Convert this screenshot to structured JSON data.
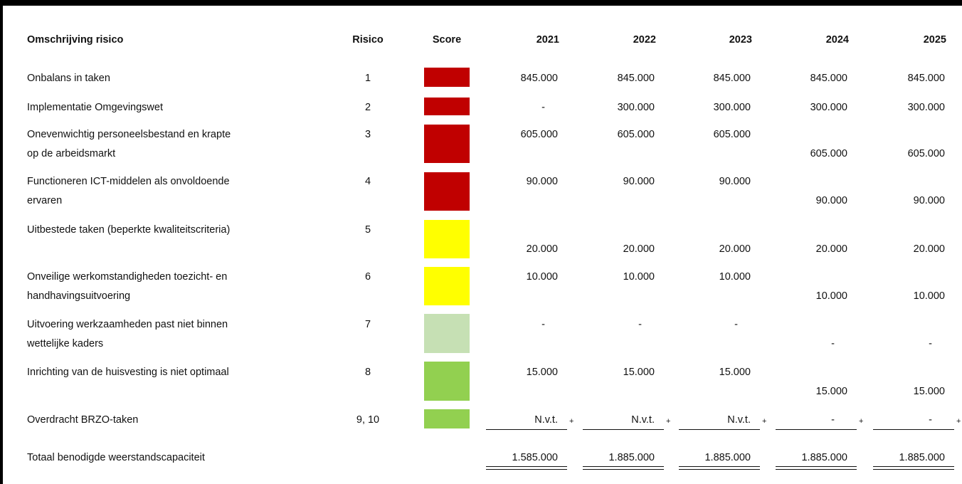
{
  "table": {
    "columns": [
      "Omschrijving risico",
      "Risico",
      "Score",
      "2021",
      "2022",
      "2023",
      "2024",
      "2025"
    ],
    "rows": [
      {
        "description": [
          "Onbalans in taken"
        ],
        "risk": "1",
        "score_color": "#c00000",
        "values": [
          "845.000",
          "845.000",
          "845.000",
          "845.000",
          "845.000"
        ]
      },
      {
        "description": [
          "Implementatie Omgevingswet"
        ],
        "risk": "2",
        "score_color": "#c00000",
        "values": [
          "-",
          "300.000",
          "300.000",
          "300.000",
          "300.000"
        ]
      },
      {
        "description": [
          "Onevenwichtig personeelsbestand en krapte",
          "op de arbeidsmarkt"
        ],
        "risk": "3",
        "score_color": "#c00000",
        "values": [
          "605.000",
          "605.000",
          "605.000",
          "605.000",
          "605.000"
        ]
      },
      {
        "description": [
          "Functioneren ICT-middelen als onvoldoende",
          "ervaren"
        ],
        "risk": "4",
        "score_color": "#c00000",
        "values": [
          "90.000",
          "90.000",
          "90.000",
          "90.000",
          "90.000"
        ]
      },
      {
        "description": [
          "Uitbestede taken (beperkte kwaliteitscriteria)"
        ],
        "risk": "5",
        "score_color": "#ffff00",
        "values": [
          "20.000",
          "20.000",
          "20.000",
          "20.000",
          "20.000"
        ]
      },
      {
        "description": [
          "Onveilige werkomstandigheden toezicht- en",
          "handhavingsuitvoering"
        ],
        "risk": "6",
        "score_color": "#ffff00",
        "values": [
          "10.000",
          "10.000",
          "10.000",
          "10.000",
          "10.000"
        ]
      },
      {
        "description": [
          "Uitvoering werkzaamheden past niet binnen",
          "wettelijke kaders"
        ],
        "risk": "7",
        "score_color": "#c6e0b4",
        "values": [
          "-",
          "-",
          "-",
          "-",
          "-"
        ]
      },
      {
        "description": [
          "Inrichting van de huisvesting is niet optimaal"
        ],
        "risk": "8",
        "score_color": "#92d050",
        "values": [
          "15.000",
          "15.000",
          "15.000",
          "15.000",
          "15.000"
        ]
      },
      {
        "description": [
          "Overdracht BRZO-taken"
        ],
        "risk": "9, 10",
        "score_color": "#92d050",
        "values": [
          "N.v.t.",
          "N.v.t.",
          "N.v.t.",
          "-",
          "-"
        ]
      }
    ],
    "plus_sign": "+",
    "total": {
      "description": "Totaal benodigde weerstandscapaciteit",
      "values": [
        "1.585.000",
        "1.885.000",
        "1.885.000",
        "1.885.000",
        "1.885.000"
      ]
    }
  }
}
